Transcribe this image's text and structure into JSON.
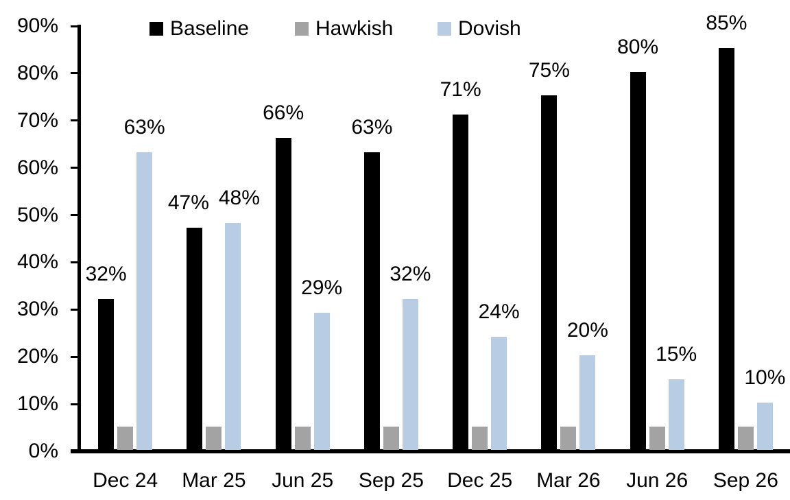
{
  "chart_data": {
    "type": "bar",
    "title": "",
    "categories": [
      "Dec 24",
      "Mar 25",
      "Jun 25",
      "Sep 25",
      "Dec 25",
      "Mar 26",
      "Jun 26",
      "Sep 26"
    ],
    "series": [
      {
        "name": "Baseline",
        "color": "#000000",
        "values": [
          32,
          47,
          66,
          63,
          71,
          75,
          80,
          85
        ],
        "data_labels": [
          "32%",
          "47%",
          "66%",
          "63%",
          "71%",
          "75%",
          "80%",
          "85%"
        ]
      },
      {
        "name": "Hawkish",
        "color": "#A3A3A3",
        "values": [
          5,
          5,
          5,
          5,
          5,
          5,
          5,
          5
        ],
        "data_labels": []
      },
      {
        "name": "Dovish",
        "color": "#B8CCE4",
        "values": [
          63,
          48,
          29,
          32,
          24,
          20,
          15,
          10
        ],
        "data_labels": [
          "63%",
          "48%",
          "29%",
          "32%",
          "24%",
          "20%",
          "15%",
          "10%"
        ]
      }
    ],
    "y_axis": {
      "min": 0,
      "max": 90,
      "step": 10,
      "tick_labels": [
        "0%",
        "10%",
        "20%",
        "30%",
        "40%",
        "50%",
        "60%",
        "70%",
        "80%",
        "90%"
      ]
    },
    "x_axis": {
      "tick_labels": [
        "Dec 24",
        "Mar 25",
        "Jun 25",
        "Sep 25",
        "Dec 25",
        "Mar 26",
        "Jun 26",
        "Sep 26"
      ]
    },
    "legend": {
      "position": "top",
      "entries": [
        "Baseline",
        "Hawkish",
        "Dovish"
      ]
    },
    "grid": false
  }
}
